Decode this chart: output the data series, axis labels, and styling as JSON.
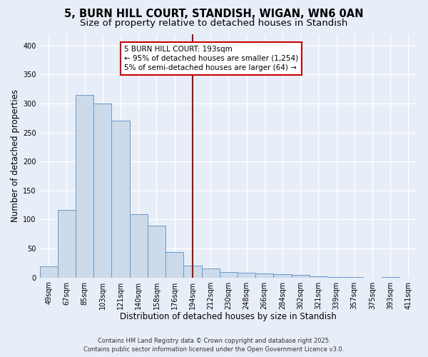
{
  "title": "5, BURN HILL COURT, STANDISH, WIGAN, WN6 0AN",
  "subtitle": "Size of property relative to detached houses in Standish",
  "xlabel": "Distribution of detached houses by size in Standish",
  "ylabel": "Number of detached properties",
  "footer_line1": "Contains HM Land Registry data © Crown copyright and database right 2025.",
  "footer_line2": "Contains public sector information licensed under the Open Government Licence v3.0.",
  "categories": [
    "49sqm",
    "67sqm",
    "85sqm",
    "103sqm",
    "121sqm",
    "140sqm",
    "158sqm",
    "176sqm",
    "194sqm",
    "212sqm",
    "230sqm",
    "248sqm",
    "266sqm",
    "284sqm",
    "302sqm",
    "321sqm",
    "339sqm",
    "357sqm",
    "375sqm",
    "393sqm",
    "411sqm"
  ],
  "values": [
    19,
    117,
    315,
    300,
    270,
    109,
    89,
    44,
    21,
    15,
    9,
    8,
    7,
    6,
    5,
    2,
    1,
    1,
    0,
    1,
    0
  ],
  "bar_color": "#ccdaea",
  "bar_edge_color": "#6699cc",
  "background_color": "#e8eef8",
  "plot_background": "#e8eef8",
  "grid_color": "#ffffff",
  "vline_x": 8,
  "vline_color": "#aa0000",
  "annotation_line1": "5 BURN HILL COURT: 193sqm",
  "annotation_line2": "← 95% of detached houses are smaller (1,254)",
  "annotation_line3": "5% of semi-detached houses are larger (64) →",
  "annotation_box_color": "#ffffff",
  "annotation_box_edge": "#cc0000",
  "ylim": [
    0,
    420
  ],
  "yticks": [
    0,
    50,
    100,
    150,
    200,
    250,
    300,
    350,
    400
  ],
  "title_fontsize": 10.5,
  "subtitle_fontsize": 9.5,
  "xlabel_fontsize": 8.5,
  "ylabel_fontsize": 8.5,
  "tick_fontsize": 7,
  "footer_fontsize": 6,
  "annotation_fontsize": 7.5
}
